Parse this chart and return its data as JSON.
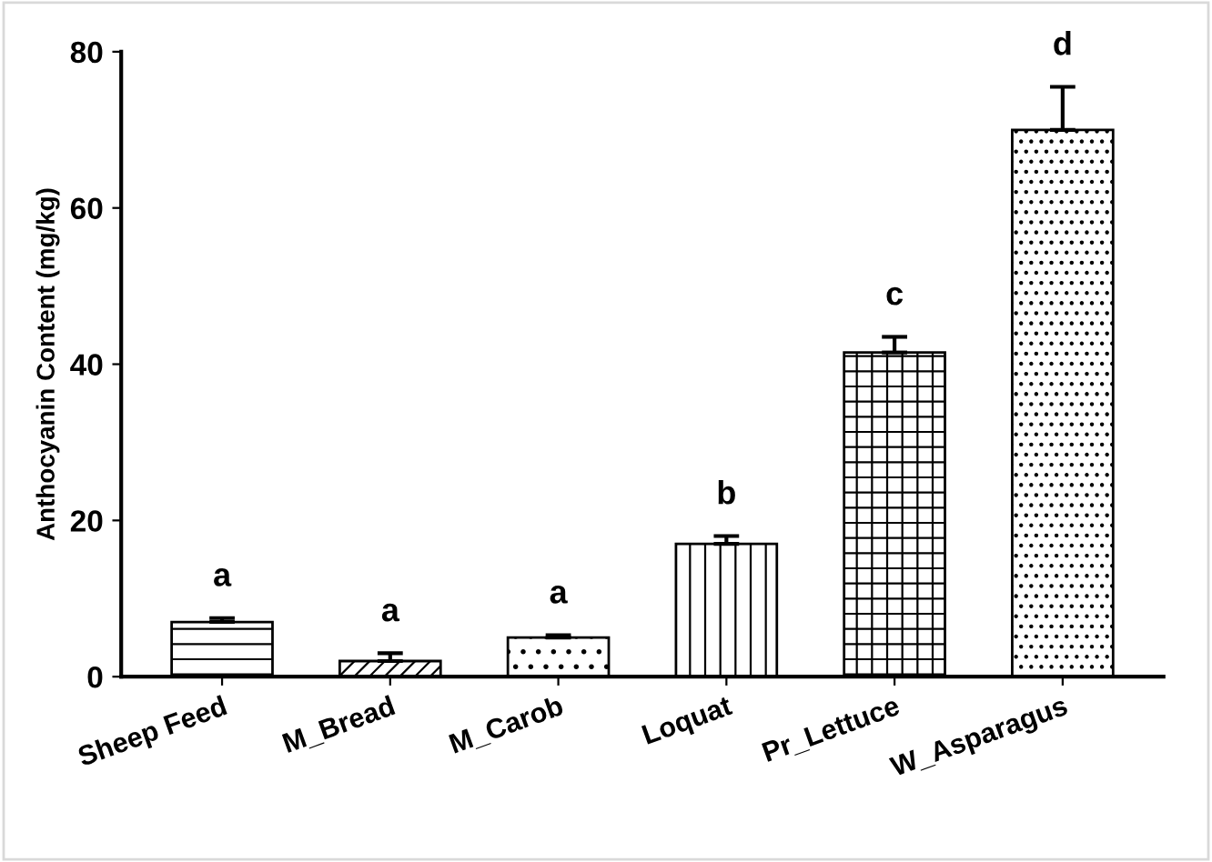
{
  "chart_data": {
    "type": "bar",
    "ylabel": "Anthocyanin Content (mg/kg)",
    "categories": [
      "Sheep Feed",
      "M_Bread",
      "M_Carob",
      "Loquat",
      "Pr_Lettuce",
      "W_Asparagus"
    ],
    "values": [
      7,
      2,
      5,
      17,
      41.5,
      70
    ],
    "errors": [
      [
        7,
        7.5
      ],
      [
        2,
        3
      ],
      [
        5,
        5.3
      ],
      [
        17,
        18
      ],
      [
        41.5,
        43.5
      ],
      [
        70,
        75.5
      ]
    ],
    "color": "#000000",
    "ylim": [
      0,
      80
    ],
    "yticks": [
      0,
      20,
      40,
      60,
      80
    ],
    "grid": false,
    "legend": false,
    "annotations": [
      "a",
      "a",
      "a",
      "b",
      "c",
      "d"
    ]
  }
}
